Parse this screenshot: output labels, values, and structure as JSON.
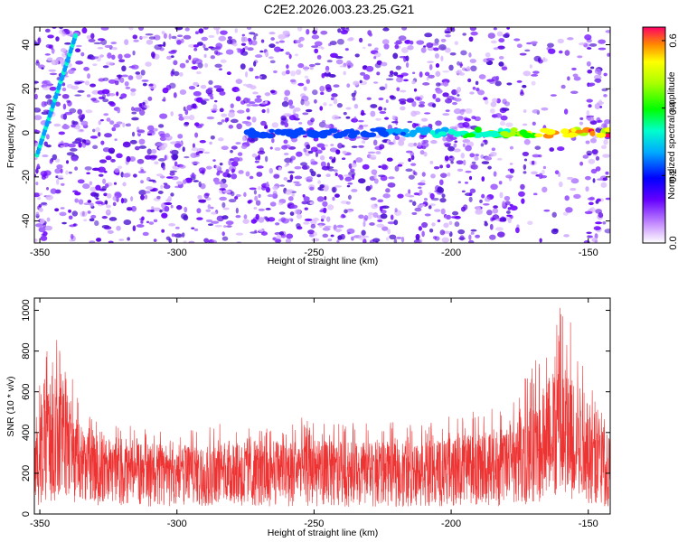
{
  "title": "C2E2.2026.003.23.25.G21",
  "colors": {
    "spectro_dots": "#6a00ff",
    "snr_line": "#ee3333"
  },
  "chart_data": [
    {
      "type": "heatmap",
      "xlabel": "Height of straight line (km)",
      "ylabel": "Frequency (Hz)",
      "xlim": [
        -352,
        -142
      ],
      "ylim": [
        -50,
        48
      ],
      "xticks": [
        "-350",
        "-300",
        "-250",
        "-200",
        "-150"
      ],
      "xtick_values": [
        -350,
        -300,
        -250,
        -200,
        -150
      ],
      "yticks": [
        "-40",
        "-20",
        "0",
        "20",
        "40"
      ],
      "ytick_values": [
        -40,
        -20,
        0,
        20,
        40
      ],
      "colorbar": {
        "label": "Normalized spectral amplitude",
        "ticks": [
          "0.0",
          "0.2",
          "0.4",
          "0.6"
        ],
        "tick_values": [
          0.0,
          0.2,
          0.4,
          0.6
        ],
        "range": [
          0.0,
          0.64
        ]
      },
      "features": [
        {
          "name": "steep streak near -345 km",
          "x": [
            -351,
            -337
          ],
          "y": [
            -10,
            44
          ]
        },
        {
          "name": "carrier near 0 Hz",
          "x": [
            -275,
            -142
          ],
          "y": [
            -1,
            1
          ],
          "peak_amplitude": 0.6
        }
      ]
    },
    {
      "type": "line",
      "xlabel": "Height of straight line (km)",
      "ylabel": "SNR (10 * v/v)",
      "xlim": [
        -352,
        -142
      ],
      "ylim": [
        0,
        1060
      ],
      "xticks": [
        "-350",
        "-300",
        "-250",
        "-200",
        "-150"
      ],
      "xtick_values": [
        -350,
        -300,
        -250,
        -200,
        -150
      ],
      "yticks": [
        "0",
        "200",
        "400",
        "600",
        "800",
        "1000"
      ],
      "ytick_values": [
        0,
        200,
        400,
        600,
        800,
        1000
      ],
      "envelope": {
        "x": [
          -352,
          -348,
          -344,
          -340,
          -336,
          -330,
          -320,
          -300,
          -280,
          -260,
          -240,
          -220,
          -200,
          -190,
          -180,
          -172,
          -166,
          -160,
          -155,
          -150,
          -145,
          -142
        ],
        "mean": [
          200,
          400,
          450,
          400,
          320,
          270,
          240,
          230,
          230,
          230,
          230,
          230,
          240,
          250,
          260,
          300,
          380,
          420,
          400,
          340,
          260,
          240
        ],
        "max": [
          500,
          800,
          900,
          780,
          560,
          480,
          440,
          430,
          450,
          480,
          460,
          450,
          480,
          520,
          560,
          700,
          880,
          1060,
          950,
          800,
          600,
          480
        ]
      }
    }
  ]
}
